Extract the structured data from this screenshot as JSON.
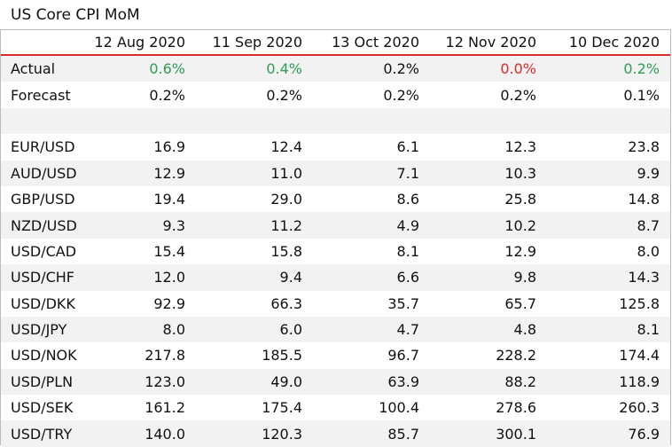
{
  "title": "US Core CPI MoM",
  "columns": [
    "",
    "12 Aug 2020",
    "11 Sep 2020",
    "13 Oct 2020",
    "12 Nov 2020",
    "10 Dec 2020"
  ],
  "colors": {
    "up": "#2e9e57",
    "down": "#d92b2b",
    "header_rule": "#d92b2b",
    "stripe": "#f2f2f2",
    "border": "#bcbcbc"
  },
  "actual": {
    "label": "Actual",
    "values": [
      "0.6%",
      "0.4%",
      "0.2%",
      "0.0%",
      "0.2%"
    ],
    "status": [
      "up",
      "up",
      "neutral",
      "down",
      "up"
    ]
  },
  "forecast": {
    "label": "Forecast",
    "values": [
      "0.2%",
      "0.2%",
      "0.2%",
      "0.2%",
      "0.1%"
    ]
  },
  "pairs": [
    {
      "label": "EUR/USD",
      "values": [
        "16.9",
        "12.4",
        "6.1",
        "12.3",
        "23.8"
      ]
    },
    {
      "label": "AUD/USD",
      "values": [
        "12.9",
        "11.0",
        "7.1",
        "10.3",
        "9.9"
      ]
    },
    {
      "label": "GBP/USD",
      "values": [
        "19.4",
        "29.0",
        "8.6",
        "25.8",
        "14.8"
      ]
    },
    {
      "label": "NZD/USD",
      "values": [
        "9.3",
        "11.2",
        "4.9",
        "10.2",
        "8.7"
      ]
    },
    {
      "label": "USD/CAD",
      "values": [
        "15.4",
        "15.8",
        "8.1",
        "12.9",
        "8.0"
      ]
    },
    {
      "label": "USD/CHF",
      "values": [
        "12.0",
        "9.4",
        "6.6",
        "9.8",
        "14.3"
      ]
    },
    {
      "label": "USD/DKK",
      "values": [
        "92.9",
        "66.3",
        "35.7",
        "65.7",
        "125.8"
      ]
    },
    {
      "label": "USD/JPY",
      "values": [
        "8.0",
        "6.0",
        "4.7",
        "4.8",
        "8.1"
      ]
    },
    {
      "label": "USD/NOK",
      "values": [
        "217.8",
        "185.5",
        "96.7",
        "228.2",
        "174.4"
      ]
    },
    {
      "label": "USD/PLN",
      "values": [
        "123.0",
        "49.0",
        "63.9",
        "88.2",
        "118.9"
      ]
    },
    {
      "label": "USD/SEK",
      "values": [
        "161.2",
        "175.4",
        "100.4",
        "278.6",
        "260.3"
      ]
    },
    {
      "label": "USD/TRY",
      "values": [
        "140.0",
        "120.3",
        "85.7",
        "300.1",
        "76.9"
      ]
    }
  ]
}
